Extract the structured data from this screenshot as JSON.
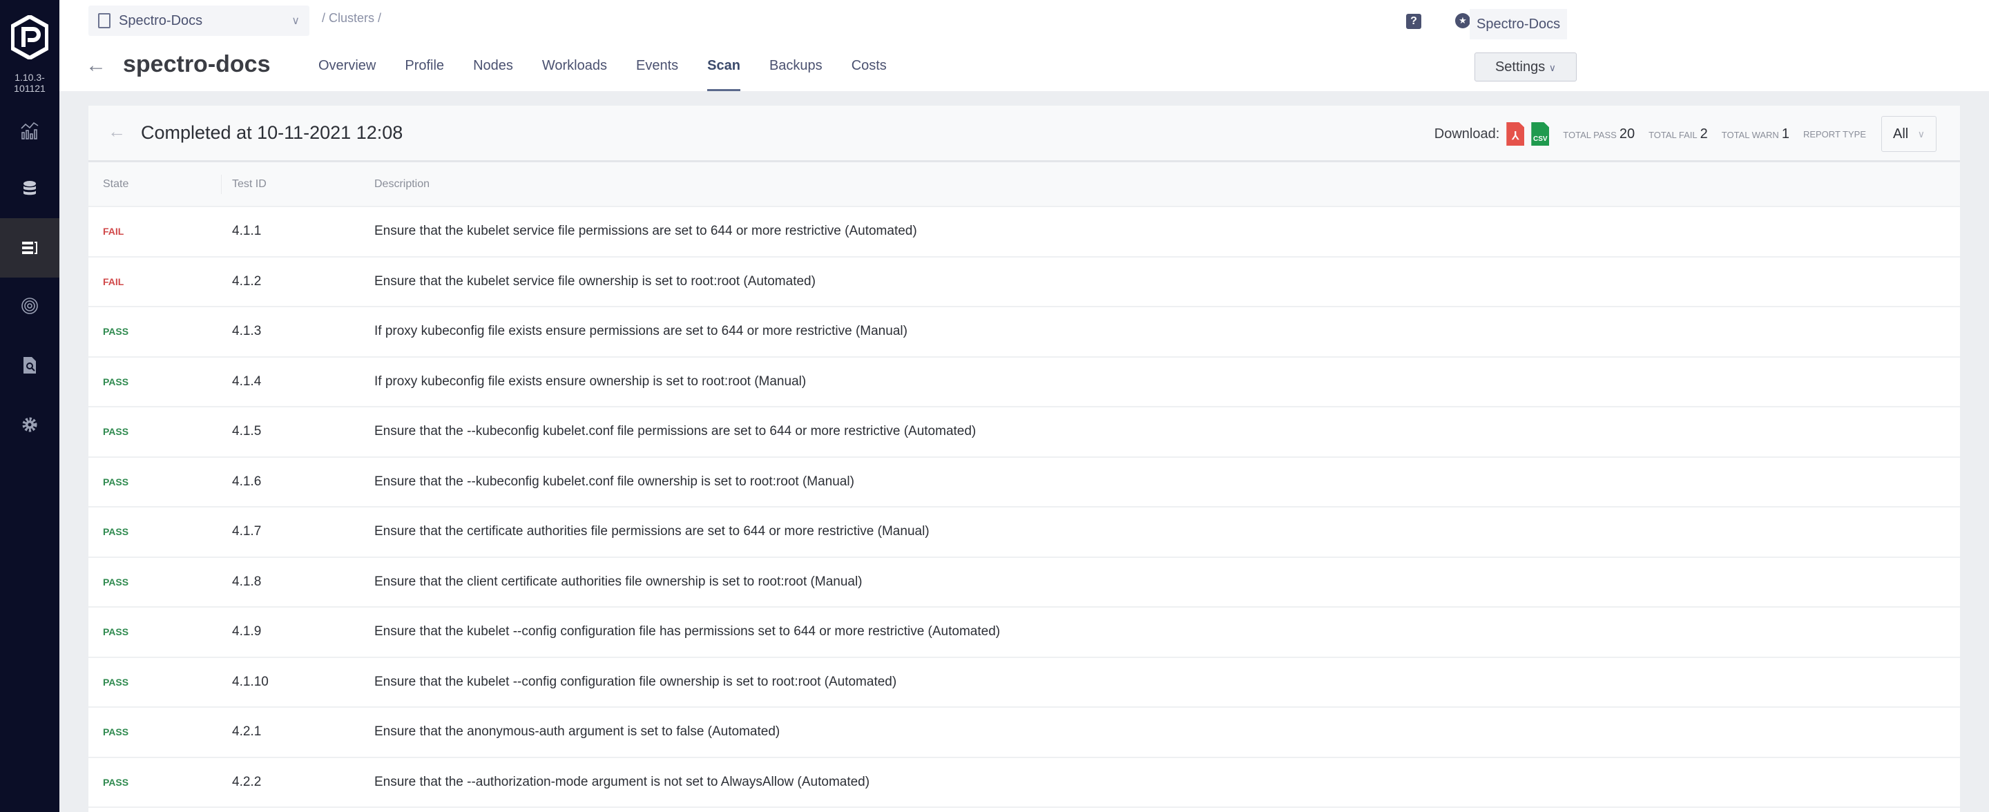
{
  "sidebar": {
    "version": "1.10.3-101121",
    "items": [
      {
        "icon": "analytics-icon"
      },
      {
        "icon": "database-icon"
      },
      {
        "icon": "clusters-list-icon",
        "active": true
      },
      {
        "icon": "target-icon"
      },
      {
        "icon": "audit-document-icon"
      },
      {
        "icon": "gear-icon"
      }
    ]
  },
  "header": {
    "project": "Spectro-Docs",
    "breadcrumb": "/ Clusters /",
    "user": "Spectro-Docs",
    "cluster_name": "spectro-docs",
    "tabs": [
      "Overview",
      "Profile",
      "Nodes",
      "Workloads",
      "Events",
      "Scan",
      "Backups",
      "Costs"
    ],
    "active_tab": "Scan",
    "settings_label": "Settings"
  },
  "scan": {
    "title": "Completed at 10-11-2021 12:08",
    "download_label": "Download:",
    "pdf_label": "PDF",
    "csv_label": "CSV",
    "total_pass_label": "TOTAL PASS",
    "total_pass": "20",
    "total_fail_label": "TOTAL FAIL",
    "total_fail": "2",
    "total_warn_label": "TOTAL WARN",
    "total_warn": "1",
    "report_type_label": "REPORT TYPE",
    "report_type": "All"
  },
  "table": {
    "columns": [
      "State",
      "Test ID",
      "Description"
    ],
    "rows": [
      {
        "state": "FAIL",
        "id": "4.1.1",
        "desc": "Ensure that the kubelet service file permissions are set to 644 or more restrictive (Automated)"
      },
      {
        "state": "FAIL",
        "id": "4.1.2",
        "desc": "Ensure that the kubelet service file ownership is set to root:root (Automated)"
      },
      {
        "state": "PASS",
        "id": "4.1.3",
        "desc": "If proxy kubeconfig file exists ensure permissions are set to 644 or more restrictive (Manual)"
      },
      {
        "state": "PASS",
        "id": "4.1.4",
        "desc": "If proxy kubeconfig file exists ensure ownership is set to root:root (Manual)"
      },
      {
        "state": "PASS",
        "id": "4.1.5",
        "desc": "Ensure that the --kubeconfig kubelet.conf file permissions are set to 644 or more restrictive (Automated)"
      },
      {
        "state": "PASS",
        "id": "4.1.6",
        "desc": "Ensure that the --kubeconfig kubelet.conf file ownership is set to root:root (Manual)"
      },
      {
        "state": "PASS",
        "id": "4.1.7",
        "desc": "Ensure that the certificate authorities file permissions are set to 644 or more restrictive (Manual)"
      },
      {
        "state": "PASS",
        "id": "4.1.8",
        "desc": "Ensure that the client certificate authorities file ownership is set to root:root (Manual)"
      },
      {
        "state": "PASS",
        "id": "4.1.9",
        "desc": "Ensure that the kubelet --config configuration file has permissions set to 644 or more restrictive (Automated)"
      },
      {
        "state": "PASS",
        "id": "4.1.10",
        "desc": "Ensure that the kubelet --config configuration file ownership is set to root:root (Automated)"
      },
      {
        "state": "PASS",
        "id": "4.2.1",
        "desc": "Ensure that the anonymous-auth argument is set to false (Automated)"
      },
      {
        "state": "PASS",
        "id": "4.2.2",
        "desc": "Ensure that the --authorization-mode argument is not set to AlwaysAllow (Automated)"
      }
    ]
  },
  "colors": {
    "sidebar": "#0b0e27",
    "fail": "#d0494a",
    "pass": "#2f8a4f",
    "pdf": "#e5534b",
    "csv": "#1f9a4e"
  }
}
